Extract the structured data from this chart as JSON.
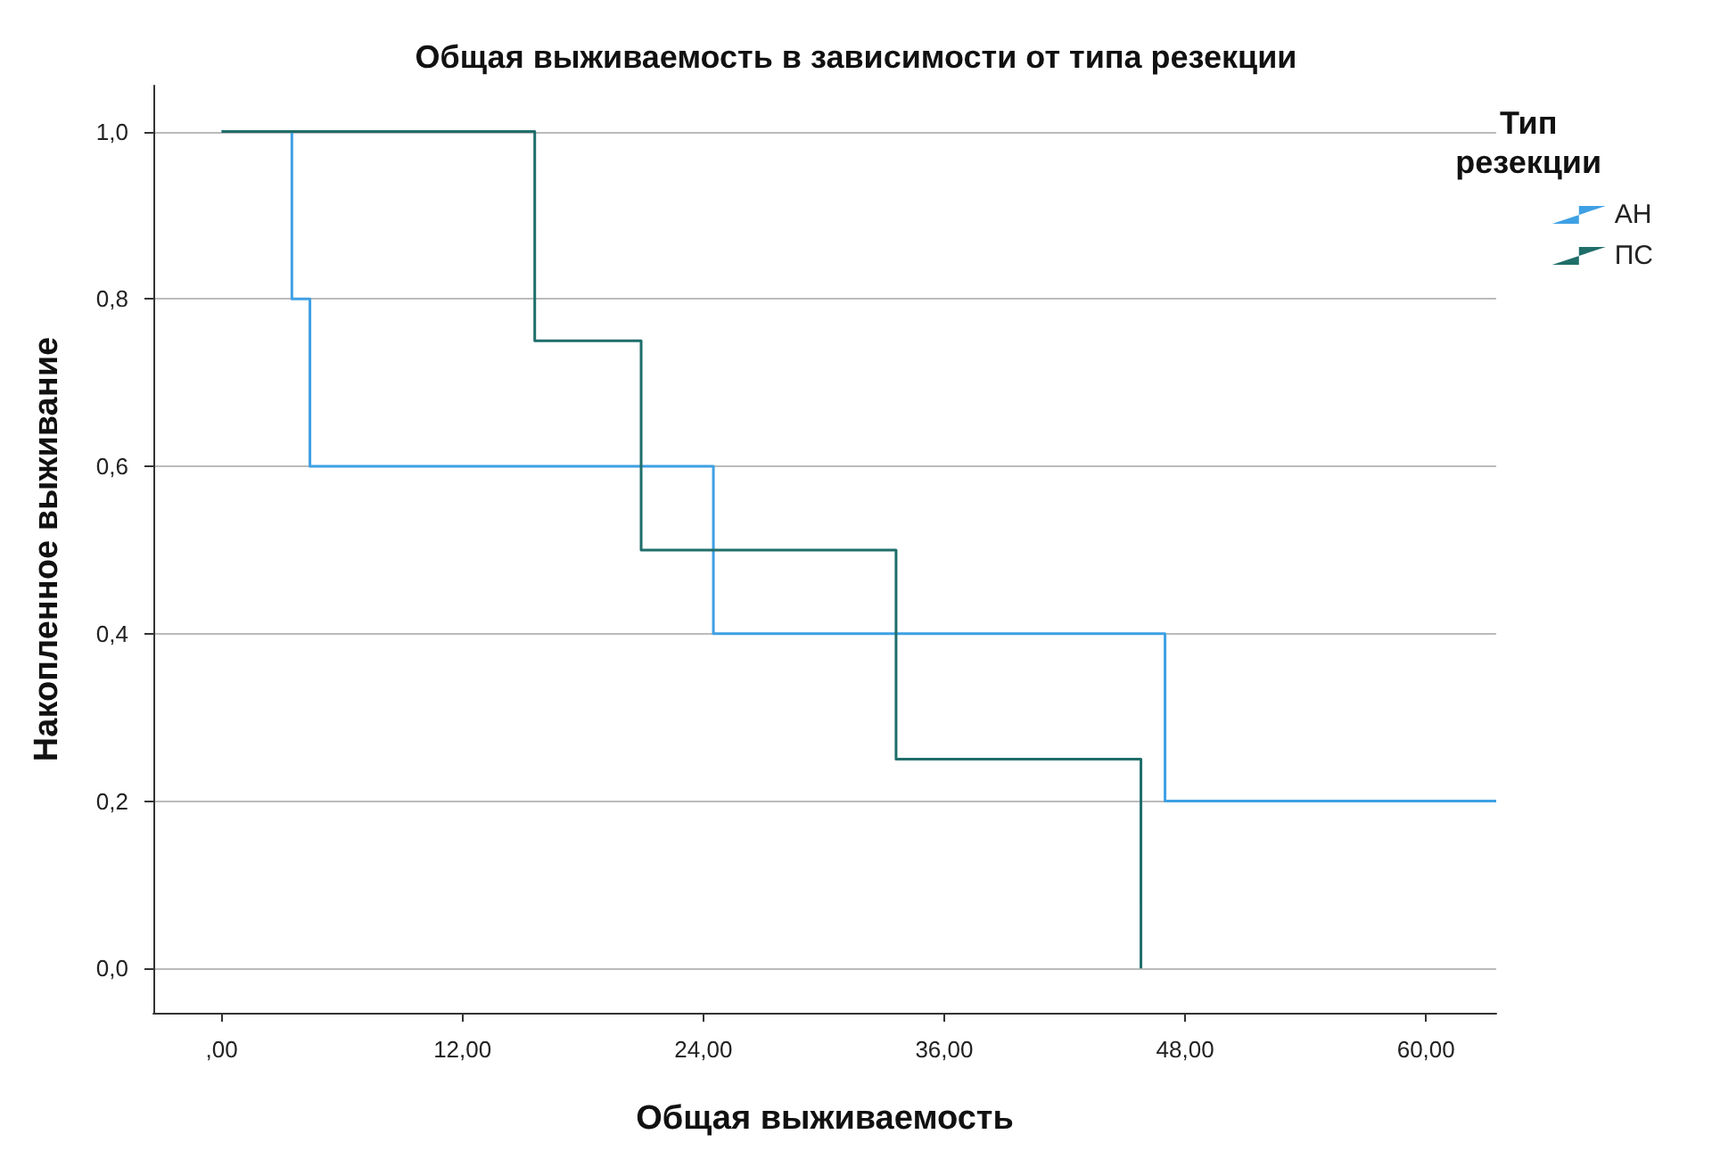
{
  "chart_data": {
    "type": "step",
    "title": "Общая выживаемость в зависимости от типа резекции",
    "xlabel": "Общая выживаемость",
    "ylabel": "Накопленное выживание",
    "legend_title": "Тип резекции",
    "legend": "top right",
    "grid": "y",
    "marker": "none",
    "line_style": "solid",
    "xlim": [
      -3.4,
      63.5
    ],
    "ylim": [
      -0.053,
      1.055
    ],
    "xticks": [
      {
        "value": 0,
        "label": ",00"
      },
      {
        "value": 12,
        "label": "12,00"
      },
      {
        "value": 24,
        "label": "24,00"
      },
      {
        "value": 36,
        "label": "36,00"
      },
      {
        "value": 48,
        "label": "48,00"
      },
      {
        "value": 60,
        "label": "60,00"
      }
    ],
    "yticks": [
      {
        "value": 0,
        "label": "0,0"
      },
      {
        "value": 0.2,
        "label": "0,2"
      },
      {
        "value": 0.4,
        "label": "0,4"
      },
      {
        "value": 0.6,
        "label": "0,6"
      },
      {
        "value": 0.8,
        "label": "0,8"
      },
      {
        "value": 1,
        "label": "1,0"
      }
    ],
    "series": [
      {
        "name": "АН",
        "color": "#3ea0e4",
        "x": [
          0,
          3.5,
          4.4,
          24.5,
          47,
          63.5
        ],
        "values": [
          1,
          0.8,
          0.6,
          0.4,
          0.2,
          0.2
        ]
      },
      {
        "name": "ПС",
        "color": "#1f6e6a",
        "x": [
          0,
          15.6,
          20.9,
          33.6,
          45.8
        ],
        "values": [
          1,
          0.75,
          0.5,
          0.25,
          0
        ]
      }
    ]
  }
}
